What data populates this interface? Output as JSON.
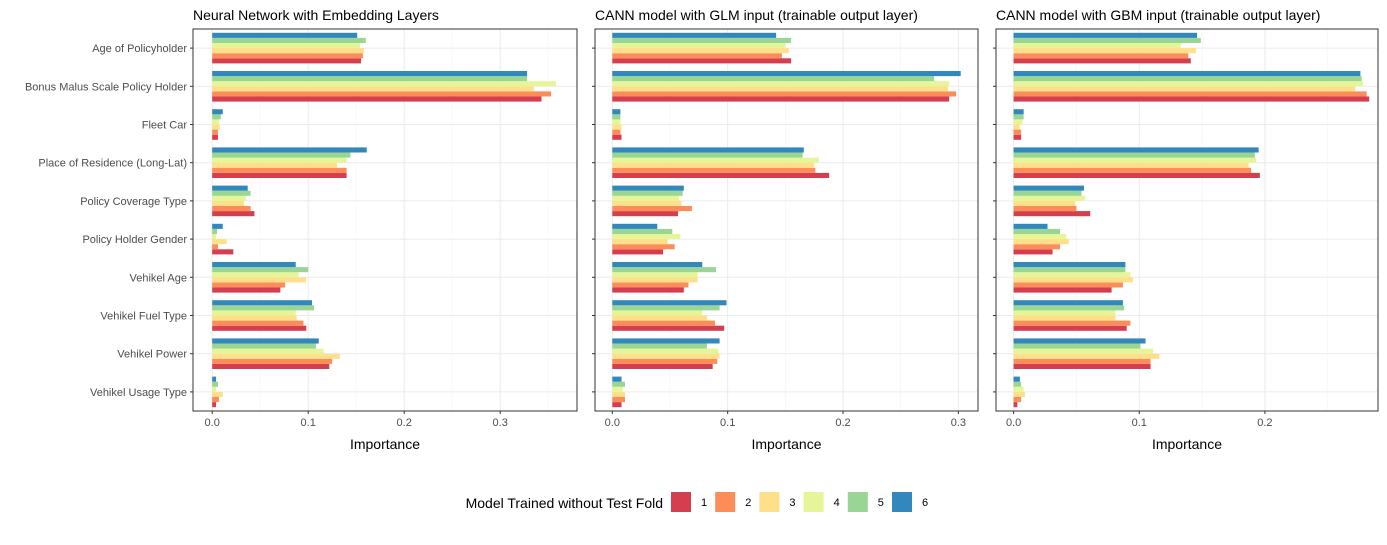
{
  "chart_data": {
    "type": "bar",
    "orientation": "horizontal",
    "categories": [
      "Age of Policyholder",
      "Bonus Malus Scale Policy Holder",
      "Fleet Car",
      "Place of Residence (Long-Lat)",
      "Policy Coverage Type",
      "Policy Holder Gender",
      "Vehikel Age",
      "Vehikel Fuel Type",
      "Vehikel Power",
      "Vehikel Usage Type"
    ],
    "series_colors": {
      "1": "#d53e4f",
      "2": "#fc8d59",
      "3": "#fee08b",
      "4": "#e6f598",
      "5": "#99d594",
      "6": "#3288bd"
    },
    "legend": {
      "title": "Model Trained without Test Fold",
      "labels": [
        "1",
        "2",
        "3",
        "4",
        "5",
        "6"
      ],
      "position": "bottom"
    },
    "grid": true,
    "panels": [
      {
        "title": "Neural Network with Embedding Layers",
        "xlabel": "Importance",
        "xlim": [
          -0.02,
          0.38
        ],
        "xticks": [
          0.0,
          0.1,
          0.2,
          0.3
        ],
        "xtick_labels": [
          "0.0",
          "0.1",
          "0.2",
          "0.3"
        ],
        "series": [
          {
            "name": "1",
            "values": [
              0.155,
              0.343,
              0.006,
              0.14,
              0.044,
              0.022,
              0.071,
              0.098,
              0.122,
              0.004
            ]
          },
          {
            "name": "2",
            "values": [
              0.157,
              0.353,
              0.006,
              0.14,
              0.04,
              0.006,
              0.076,
              0.095,
              0.125,
              0.007
            ]
          },
          {
            "name": "3",
            "values": [
              0.158,
              0.335,
              0.008,
              0.13,
              0.033,
              0.015,
              0.098,
              0.088,
              0.133,
              0.011
            ]
          },
          {
            "name": "4",
            "values": [
              0.154,
              0.358,
              0.007,
              0.14,
              0.035,
              0.004,
              0.09,
              0.087,
              0.116,
              0.004
            ]
          },
          {
            "name": "5",
            "values": [
              0.16,
              0.328,
              0.009,
              0.144,
              0.04,
              0.005,
              0.1,
              0.106,
              0.108,
              0.006
            ]
          },
          {
            "name": "6",
            "values": [
              0.151,
              0.328,
              0.011,
              0.161,
              0.037,
              0.011,
              0.087,
              0.104,
              0.111,
              0.004
            ]
          }
        ]
      },
      {
        "title": "CANN model with GLM input (trainable output layer)",
        "xlabel": "Importance",
        "xlim": [
          -0.015,
          0.317
        ],
        "xticks": [
          0.0,
          0.1,
          0.2,
          0.3
        ],
        "xtick_labels": [
          "0.0",
          "0.1",
          "0.2",
          "0.3"
        ],
        "series": [
          {
            "name": "1",
            "values": [
              0.155,
              0.292,
              0.008,
              0.188,
              0.057,
              0.044,
              0.062,
              0.097,
              0.087,
              0.008
            ]
          },
          {
            "name": "2",
            "values": [
              0.147,
              0.298,
              0.007,
              0.176,
              0.069,
              0.054,
              0.066,
              0.089,
              0.091,
              0.011
            ]
          },
          {
            "name": "3",
            "values": [
              0.153,
              0.291,
              0.008,
              0.175,
              0.06,
              0.048,
              0.074,
              0.082,
              0.093,
              0.011
            ]
          },
          {
            "name": "4",
            "values": [
              0.15,
              0.292,
              0.007,
              0.179,
              0.058,
              0.059,
              0.074,
              0.078,
              0.092,
              0.009
            ]
          },
          {
            "name": "5",
            "values": [
              0.155,
              0.279,
              0.007,
              0.165,
              0.061,
              0.052,
              0.09,
              0.093,
              0.082,
              0.011
            ]
          },
          {
            "name": "6",
            "values": [
              0.142,
              0.302,
              0.007,
              0.166,
              0.062,
              0.039,
              0.078,
              0.099,
              0.093,
              0.008
            ]
          }
        ]
      },
      {
        "title": "CANN model with GBM input (trainable output layer)",
        "xlabel": "Importance",
        "xlim": [
          -0.014,
          0.29
        ],
        "xticks": [
          0.0,
          0.1,
          0.2
        ],
        "xtick_labels": [
          "0.0",
          "0.1",
          "0.2"
        ],
        "series": [
          {
            "name": "1",
            "values": [
              0.141,
              0.283,
              0.006,
              0.196,
              0.061,
              0.031,
              0.078,
              0.09,
              0.109,
              0.003
            ]
          },
          {
            "name": "2",
            "values": [
              0.139,
              0.281,
              0.006,
              0.189,
              0.05,
              0.037,
              0.087,
              0.093,
              0.109,
              0.006
            ]
          },
          {
            "name": "3",
            "values": [
              0.145,
              0.272,
              0.005,
              0.187,
              0.049,
              0.044,
              0.095,
              0.081,
              0.116,
              0.009
            ]
          },
          {
            "name": "4",
            "values": [
              0.133,
              0.278,
              0.007,
              0.193,
              0.057,
              0.042,
              0.093,
              0.081,
              0.111,
              0.008
            ]
          },
          {
            "name": "5",
            "values": [
              0.149,
              0.277,
              0.008,
              0.192,
              0.054,
              0.037,
              0.089,
              0.088,
              0.101,
              0.006
            ]
          },
          {
            "name": "6",
            "values": [
              0.146,
              0.276,
              0.008,
              0.195,
              0.056,
              0.027,
              0.089,
              0.087,
              0.105,
              0.005
            ]
          }
        ]
      }
    ]
  }
}
